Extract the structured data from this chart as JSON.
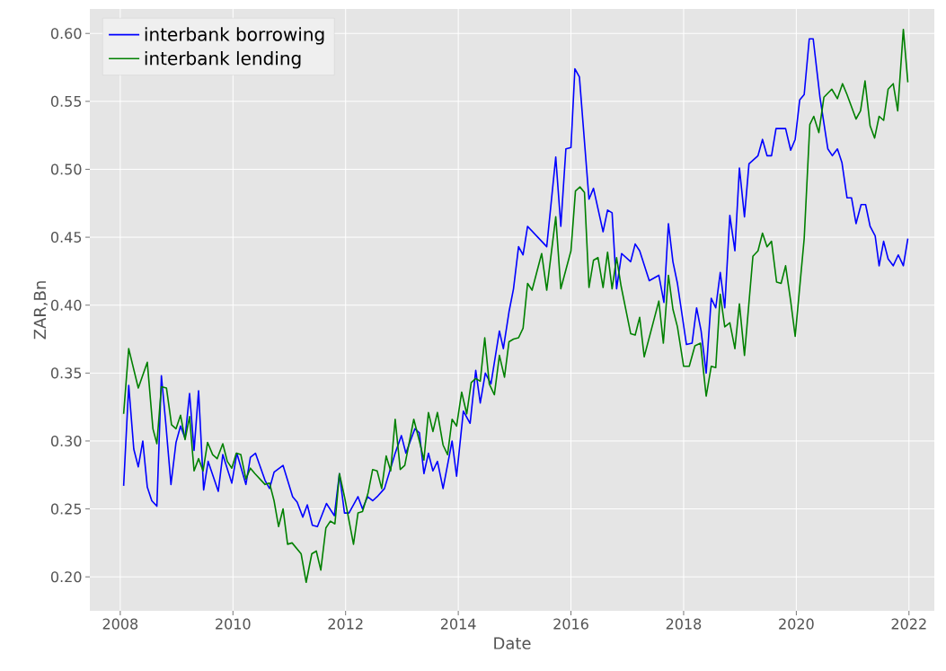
{
  "chart_data": {
    "type": "line",
    "xlabel": "Date",
    "ylabel": "ZAR,Bn",
    "xlim": [
      2007.46,
      2022.45
    ],
    "ylim": [
      0.175,
      0.618
    ],
    "xticks": [
      2008,
      2010,
      2012,
      2014,
      2016,
      2018,
      2020,
      2022
    ],
    "yticks": [
      {
        "value": 0.2,
        "label": "0.20"
      },
      0.25,
      {
        "value": 0.3,
        "label": "0.30"
      },
      0.35,
      {
        "value": 0.4,
        "label": "0.40"
      },
      0.45,
      {
        "value": 0.5,
        "label": "0.50"
      },
      0.55,
      {
        "value": 0.6,
        "label": "0.60"
      }
    ],
    "grid": true,
    "legend": "top left",
    "line_style": "solid",
    "marker": "none",
    "series": [
      {
        "name": "interbank borrowing",
        "color": "#0000ff",
        "x": [
          2008.06,
          2008.15,
          2008.24,
          2008.32,
          2008.4,
          2008.48,
          2008.56,
          2008.65,
          2008.73,
          2008.81,
          2008.9,
          2008.99,
          2009.07,
          2009.15,
          2009.23,
          2009.31,
          2009.39,
          2009.48,
          2009.56,
          2009.74,
          2009.82,
          2009.98,
          2010.07,
          2010.23,
          2010.31,
          2010.4,
          2010.57,
          2010.65,
          2010.73,
          2010.89,
          2011.06,
          2011.14,
          2011.24,
          2011.32,
          2011.41,
          2011.5,
          2011.66,
          2011.8,
          2011.89,
          2011.98,
          2012.06,
          2012.22,
          2012.3,
          2012.39,
          2012.48,
          2012.56,
          2012.69,
          2012.88,
          2012.99,
          2013.07,
          2013.23,
          2013.31,
          2013.39,
          2013.47,
          2013.55,
          2013.63,
          2013.73,
          2013.89,
          2013.97,
          2014.09,
          2014.21,
          2014.31,
          2014.39,
          2014.48,
          2014.58,
          2014.73,
          2014.8,
          2014.9,
          2014.98,
          2015.07,
          2015.15,
          2015.23,
          2015.57,
          2015.73,
          2015.82,
          2015.91,
          2016.0,
          2016.07,
          2016.15,
          2016.32,
          2016.4,
          2016.57,
          2016.65,
          2016.73,
          2016.81,
          2016.9,
          2017.06,
          2017.14,
          2017.22,
          2017.39,
          2017.56,
          2017.65,
          2017.73,
          2017.81,
          2017.89,
          2018.05,
          2018.15,
          2018.23,
          2018.31,
          2018.4,
          2018.49,
          2018.57,
          2018.65,
          2018.73,
          2018.82,
          2018.91,
          2018.99,
          2019.08,
          2019.16,
          2019.32,
          2019.4,
          2019.48,
          2019.56,
          2019.64,
          2019.81,
          2019.9,
          2019.98,
          2020.06,
          2020.14,
          2020.23,
          2020.3,
          2020.42,
          2020.56,
          2020.64,
          2020.73,
          2020.81,
          2020.9,
          2020.98,
          2021.06,
          2021.15,
          2021.23,
          2021.31,
          2021.4,
          2021.47,
          2021.55,
          2021.63,
          2021.72,
          2021.81,
          2021.9,
          2021.98
        ],
        "values": [
          0.267,
          0.341,
          0.294,
          0.281,
          0.3,
          0.266,
          0.256,
          0.252,
          0.348,
          0.312,
          0.268,
          0.299,
          0.311,
          0.302,
          0.335,
          0.293,
          0.337,
          0.264,
          0.285,
          0.263,
          0.29,
          0.269,
          0.291,
          0.268,
          0.288,
          0.291,
          0.271,
          0.265,
          0.277,
          0.282,
          0.259,
          0.255,
          0.244,
          0.253,
          0.238,
          0.237,
          0.254,
          0.245,
          0.276,
          0.247,
          0.247,
          0.259,
          0.25,
          0.259,
          0.256,
          0.259,
          0.265,
          0.291,
          0.304,
          0.291,
          0.309,
          0.306,
          0.276,
          0.291,
          0.278,
          0.285,
          0.265,
          0.3,
          0.274,
          0.322,
          0.313,
          0.352,
          0.328,
          0.35,
          0.342,
          0.381,
          0.368,
          0.395,
          0.412,
          0.443,
          0.437,
          0.458,
          0.443,
          0.509,
          0.458,
          0.515,
          0.516,
          0.574,
          0.568,
          0.478,
          0.486,
          0.454,
          0.47,
          0.468,
          0.412,
          0.438,
          0.432,
          0.445,
          0.44,
          0.418,
          0.422,
          0.402,
          0.46,
          0.432,
          0.416,
          0.371,
          0.372,
          0.398,
          0.381,
          0.35,
          0.405,
          0.398,
          0.424,
          0.398,
          0.466,
          0.44,
          0.501,
          0.465,
          0.504,
          0.51,
          0.522,
          0.51,
          0.51,
          0.53,
          0.53,
          0.514,
          0.522,
          0.551,
          0.555,
          0.596,
          0.596,
          0.553,
          0.515,
          0.51,
          0.515,
          0.505,
          0.479,
          0.479,
          0.46,
          0.474,
          0.474,
          0.458,
          0.451,
          0.429,
          0.447,
          0.434,
          0.429,
          0.437,
          0.429,
          0.449
        ]
      },
      {
        "name": "interbank lending",
        "color": "#008000",
        "x": [
          2008.06,
          2008.15,
          2008.32,
          2008.48,
          2008.58,
          2008.65,
          2008.73,
          2008.82,
          2008.91,
          2008.99,
          2009.07,
          2009.15,
          2009.23,
          2009.31,
          2009.39,
          2009.47,
          2009.55,
          2009.64,
          2009.72,
          2009.82,
          2009.9,
          2009.98,
          2010.06,
          2010.14,
          2010.23,
          2010.31,
          2010.39,
          2010.57,
          2010.65,
          2010.73,
          2010.81,
          2010.89,
          2010.97,
          2011.05,
          2011.21,
          2011.3,
          2011.4,
          2011.48,
          2011.56,
          2011.65,
          2011.73,
          2011.81,
          2011.89,
          2011.98,
          2012.14,
          2012.22,
          2012.3,
          2012.4,
          2012.48,
          2012.56,
          2012.64,
          2012.72,
          2012.8,
          2012.88,
          2012.97,
          2013.05,
          2013.21,
          2013.31,
          2013.39,
          2013.47,
          2013.55,
          2013.63,
          2013.73,
          2013.81,
          2013.89,
          2013.97,
          2014.06,
          2014.15,
          2014.23,
          2014.31,
          2014.39,
          2014.47,
          2014.55,
          2014.64,
          2014.73,
          2014.82,
          2014.9,
          2014.98,
          2015.07,
          2015.15,
          2015.23,
          2015.31,
          2015.48,
          2015.57,
          2015.73,
          2015.82,
          2016.0,
          2016.08,
          2016.16,
          2016.24,
          2016.32,
          2016.4,
          2016.48,
          2016.57,
          2016.65,
          2016.73,
          2016.81,
          2016.89,
          2017.06,
          2017.14,
          2017.22,
          2017.3,
          2017.56,
          2017.64,
          2017.73,
          2017.81,
          2017.89,
          2018.0,
          2018.1,
          2018.2,
          2018.3,
          2018.4,
          2018.49,
          2018.57,
          2018.65,
          2018.73,
          2018.82,
          2018.91,
          2018.99,
          2019.08,
          2019.23,
          2019.32,
          2019.4,
          2019.48,
          2019.56,
          2019.65,
          2019.73,
          2019.81,
          2019.9,
          2019.98,
          2020.14,
          2020.24,
          2020.31,
          2020.4,
          2020.49,
          2020.63,
          2020.73,
          2020.82,
          2020.9,
          2021.06,
          2021.14,
          2021.22,
          2021.31,
          2021.39,
          2021.47,
          2021.55,
          2021.63,
          2021.72,
          2021.8,
          2021.9,
          2021.98
        ],
        "values": [
          0.32,
          0.368,
          0.339,
          0.358,
          0.309,
          0.298,
          0.34,
          0.339,
          0.312,
          0.309,
          0.319,
          0.301,
          0.318,
          0.278,
          0.287,
          0.278,
          0.299,
          0.29,
          0.287,
          0.298,
          0.285,
          0.28,
          0.291,
          0.29,
          0.272,
          0.28,
          0.276,
          0.268,
          0.269,
          0.256,
          0.237,
          0.25,
          0.224,
          0.225,
          0.217,
          0.196,
          0.217,
          0.219,
          0.205,
          0.236,
          0.241,
          0.239,
          0.276,
          0.259,
          0.224,
          0.247,
          0.248,
          0.262,
          0.279,
          0.278,
          0.265,
          0.289,
          0.278,
          0.316,
          0.279,
          0.282,
          0.316,
          0.3,
          0.286,
          0.321,
          0.307,
          0.321,
          0.297,
          0.29,
          0.316,
          0.311,
          0.336,
          0.32,
          0.343,
          0.346,
          0.344,
          0.376,
          0.342,
          0.334,
          0.363,
          0.347,
          0.373,
          0.375,
          0.376,
          0.383,
          0.416,
          0.411,
          0.438,
          0.411,
          0.465,
          0.412,
          0.44,
          0.484,
          0.487,
          0.483,
          0.413,
          0.433,
          0.435,
          0.413,
          0.439,
          0.412,
          0.435,
          0.414,
          0.379,
          0.378,
          0.391,
          0.362,
          0.403,
          0.372,
          0.422,
          0.397,
          0.384,
          0.355,
          0.355,
          0.37,
          0.372,
          0.333,
          0.355,
          0.354,
          0.408,
          0.384,
          0.387,
          0.368,
          0.401,
          0.363,
          0.436,
          0.44,
          0.453,
          0.443,
          0.447,
          0.417,
          0.416,
          0.429,
          0.403,
          0.377,
          0.449,
          0.533,
          0.539,
          0.527,
          0.553,
          0.559,
          0.552,
          0.563,
          0.555,
          0.537,
          0.543,
          0.565,
          0.532,
          0.523,
          0.539,
          0.536,
          0.559,
          0.563,
          0.543,
          0.603,
          0.564
        ]
      }
    ]
  }
}
